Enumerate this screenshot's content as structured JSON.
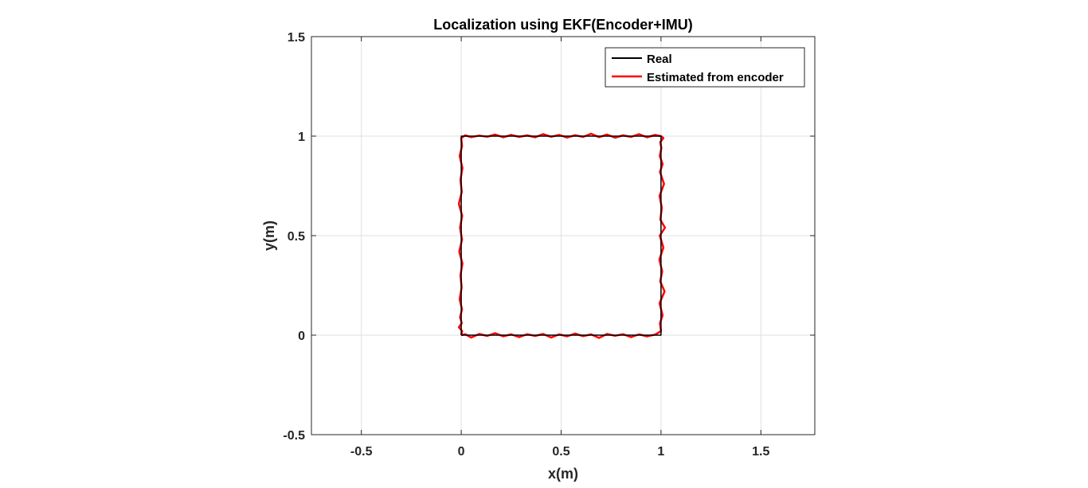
{
  "chart_data": {
    "type": "line",
    "title": "Localization using EKF(Encoder+IMU)",
    "xlabel": "x(m)",
    "ylabel": "y(m)",
    "xlim": [
      -0.75,
      1.77
    ],
    "ylim": [
      -0.5,
      1.5
    ],
    "xticks": [
      "-0.5",
      "0",
      "0.5",
      "1",
      "1.5"
    ],
    "xtick_values": [
      -0.5,
      0,
      0.5,
      1,
      1.5
    ],
    "yticks": [
      "-0.5",
      "0",
      "0.5",
      "1",
      "1.5"
    ],
    "ytick_values": [
      -0.5,
      0,
      0.5,
      1,
      1.5
    ],
    "grid": true,
    "legend_position": "top-right",
    "series": [
      {
        "name": "Real",
        "color": "#000000",
        "x": [
          0,
          1,
          1,
          0,
          0
        ],
        "y": [
          0,
          0,
          1,
          1,
          0
        ]
      },
      {
        "name": "Estimated from encoder",
        "color": "#ff0000",
        "x": [
          0,
          0.02,
          0.05,
          0.09,
          0.13,
          0.17,
          0.21,
          0.25,
          0.29,
          0.33,
          0.37,
          0.41,
          0.45,
          0.49,
          0.53,
          0.57,
          0.61,
          0.65,
          0.69,
          0.73,
          0.77,
          0.81,
          0.85,
          0.89,
          0.93,
          0.97,
          1.0,
          0.995,
          1.008,
          0.993,
          1.018,
          0.996,
          1.006,
          0.992,
          1.012,
          0.994,
          1.02,
          0.997,
          1.004,
          0.993,
          1.015,
          0.995,
          1.008,
          0.994,
          1.002,
          0.996,
          1.012,
          1.0,
          0.97,
          0.93,
          0.89,
          0.85,
          0.81,
          0.77,
          0.73,
          0.69,
          0.65,
          0.61,
          0.57,
          0.53,
          0.49,
          0.45,
          0.41,
          0.37,
          0.33,
          0.29,
          0.25,
          0.21,
          0.17,
          0.13,
          0.09,
          0.05,
          0.02,
          0.0,
          0.004,
          -0.008,
          0.006,
          -0.004,
          0.003,
          -0.012,
          0.005,
          -0.006,
          0.004,
          -0.01,
          0.006,
          -0.004,
          0.002,
          -0.008,
          0.004,
          -0.006,
          0.003,
          -0.012,
          0.005,
          0.0
        ],
        "y": [
          0,
          0.005,
          -0.012,
          0.006,
          -0.004,
          0.01,
          -0.006,
          0.004,
          -0.01,
          0.005,
          -0.004,
          0.006,
          -0.012,
          0.004,
          -0.006,
          0.008,
          -0.005,
          0.004,
          -0.014,
          0.006,
          -0.003,
          0.005,
          -0.01,
          0.004,
          -0.006,
          0.003,
          0.02,
          0.06,
          0.1,
          0.16,
          0.22,
          0.27,
          0.32,
          0.38,
          0.44,
          0.5,
          0.54,
          0.58,
          0.64,
          0.7,
          0.76,
          0.82,
          0.86,
          0.9,
          0.94,
          0.97,
          0.99,
          1.0,
          1.006,
          0.994,
          1.01,
          0.996,
          1.004,
          0.992,
          1.008,
          0.995,
          1.012,
          0.996,
          1.005,
          0.993,
          1.006,
          0.997,
          1.01,
          0.994,
          1.004,
          0.996,
          1.006,
          0.994,
          1.008,
          0.997,
          1.003,
          0.995,
          1.004,
          0.99,
          0.95,
          0.9,
          0.84,
          0.78,
          0.72,
          0.66,
          0.6,
          0.54,
          0.48,
          0.42,
          0.36,
          0.3,
          0.24,
          0.18,
          0.13,
          0.09,
          0.06,
          0.04,
          0.02,
          0.0
        ]
      }
    ]
  }
}
